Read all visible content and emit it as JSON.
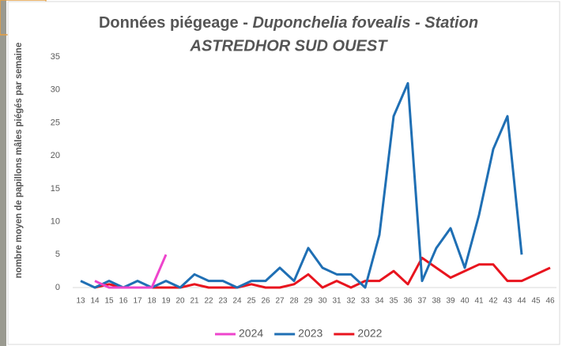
{
  "chart_data": {
    "type": "line",
    "title": [
      "Données piégeage - ",
      "Duponchelia fovealis - Station",
      "ASTREDHOR SUD OUEST"
    ],
    "y_label": "nombre moyen de papillons mâles piégés par semaine",
    "categories": [
      "13",
      "14",
      "15",
      "16",
      "17",
      "18",
      "19",
      "20",
      "21",
      "22",
      "23",
      "24",
      "25",
      "26",
      "27",
      "28",
      "29",
      "30",
      "31",
      "32",
      "33",
      "34",
      "35",
      "36",
      "37",
      "38",
      "39",
      "40",
      "41",
      "42",
      "43",
      "44",
      "45",
      "46"
    ],
    "series": [
      {
        "name": "2024",
        "color": "#ee44cc",
        "values": [
          null,
          1,
          0,
          0,
          0,
          0,
          5,
          null,
          null,
          null,
          null,
          null,
          null,
          null,
          null,
          null,
          null,
          null,
          null,
          null,
          null,
          null,
          null,
          null,
          null,
          null,
          null,
          null,
          null,
          null,
          null,
          null,
          null,
          null
        ]
      },
      {
        "name": "2023",
        "color": "#1f6fb4",
        "values": [
          1,
          0,
          1,
          0,
          1,
          0,
          1,
          0,
          2,
          1,
          1,
          0,
          1,
          1,
          3,
          1,
          6,
          3,
          2,
          2,
          0,
          8,
          26,
          31,
          1,
          6,
          9,
          3,
          11,
          21,
          26,
          5,
          null,
          null
        ]
      },
      {
        "name": "2022",
        "color": "#e8141e",
        "values": [
          null,
          0,
          0.5,
          0,
          0,
          0,
          0,
          0,
          0.5,
          0,
          0,
          0,
          0.5,
          0,
          0,
          0.5,
          2,
          0,
          1,
          0,
          1,
          1,
          2.5,
          0.5,
          4.5,
          3,
          1.5,
          2.5,
          3.5,
          3.5,
          1,
          1,
          2,
          3
        ]
      }
    ],
    "ylim": [
      0,
      35
    ],
    "yticks": [
      0,
      5,
      10,
      15,
      20,
      25,
      30,
      35
    ],
    "grid": false,
    "legend": "bottom"
  }
}
